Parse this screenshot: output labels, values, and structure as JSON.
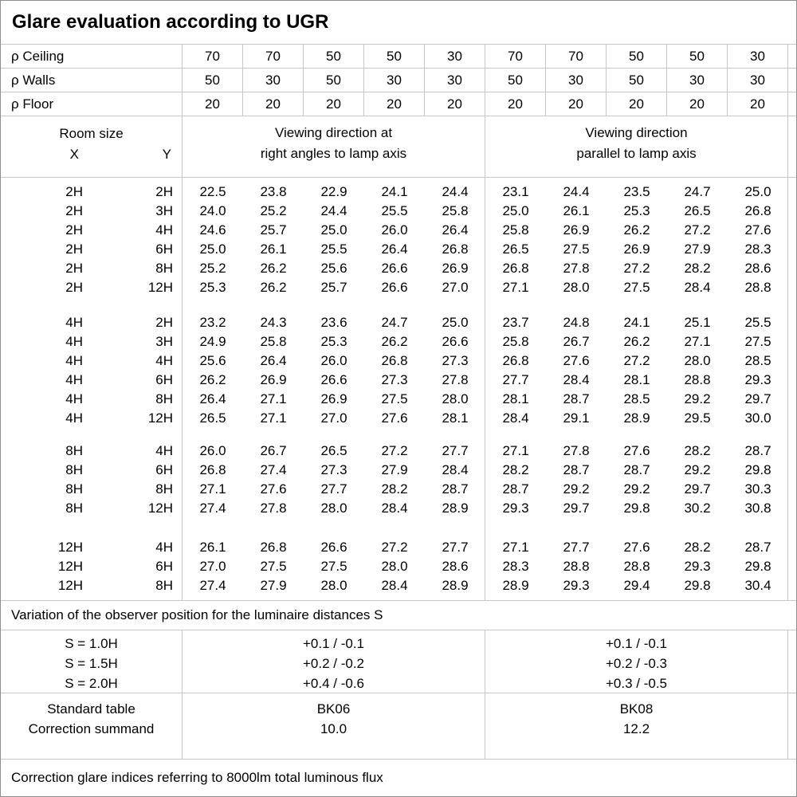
{
  "title": "Glare evaluation according to UGR",
  "grid_line_color": "#c6c6c6",
  "outer_border_color": "#8f8f8f",
  "reflectances": {
    "rows": [
      {
        "label": "ρ Ceiling",
        "values": [
          "70",
          "70",
          "50",
          "50",
          "30",
          "70",
          "70",
          "50",
          "50",
          "30"
        ]
      },
      {
        "label": "ρ Walls",
        "values": [
          "50",
          "30",
          "50",
          "30",
          "30",
          "50",
          "30",
          "50",
          "30",
          "30"
        ]
      },
      {
        "label": "ρ Floor",
        "values": [
          "20",
          "20",
          "20",
          "20",
          "20",
          "20",
          "20",
          "20",
          "20",
          "20"
        ]
      }
    ]
  },
  "header": {
    "room_size_label": "Room size",
    "x_label": "X",
    "y_label": "Y",
    "group1_title": [
      "Viewing direction at",
      "right angles to lamp axis"
    ],
    "group2_title": [
      "Viewing direction",
      "parallel to lamp axis"
    ]
  },
  "ugr_table": {
    "blocks": [
      {
        "rows": [
          {
            "x": "2H",
            "y": "2H",
            "values": [
              "22.5",
              "23.8",
              "22.9",
              "24.1",
              "24.4",
              "23.1",
              "24.4",
              "23.5",
              "24.7",
              "25.0"
            ]
          },
          {
            "x": "2H",
            "y": "3H",
            "values": [
              "24.0",
              "25.2",
              "24.4",
              "25.5",
              "25.8",
              "25.0",
              "26.1",
              "25.3",
              "26.5",
              "26.8"
            ]
          },
          {
            "x": "2H",
            "y": "4H",
            "values": [
              "24.6",
              "25.7",
              "25.0",
              "26.0",
              "26.4",
              "25.8",
              "26.9",
              "26.2",
              "27.2",
              "27.6"
            ]
          },
          {
            "x": "2H",
            "y": "6H",
            "values": [
              "25.0",
              "26.1",
              "25.5",
              "26.4",
              "26.8",
              "26.5",
              "27.5",
              "26.9",
              "27.9",
              "28.3"
            ]
          },
          {
            "x": "2H",
            "y": "8H",
            "values": [
              "25.2",
              "26.2",
              "25.6",
              "26.6",
              "26.9",
              "26.8",
              "27.8",
              "27.2",
              "28.2",
              "28.6"
            ]
          },
          {
            "x": "2H",
            "y": "12H",
            "values": [
              "25.3",
              "26.2",
              "25.7",
              "26.6",
              "27.0",
              "27.1",
              "28.0",
              "27.5",
              "28.4",
              "28.8"
            ]
          }
        ]
      },
      {
        "rows": [
          {
            "x": "4H",
            "y": "2H",
            "values": [
              "23.2",
              "24.3",
              "23.6",
              "24.7",
              "25.0",
              "23.7",
              "24.8",
              "24.1",
              "25.1",
              "25.5"
            ]
          },
          {
            "x": "4H",
            "y": "3H",
            "values": [
              "24.9",
              "25.8",
              "25.3",
              "26.2",
              "26.6",
              "25.8",
              "26.7",
              "26.2",
              "27.1",
              "27.5"
            ]
          },
          {
            "x": "4H",
            "y": "4H",
            "values": [
              "25.6",
              "26.4",
              "26.0",
              "26.8",
              "27.3",
              "26.8",
              "27.6",
              "27.2",
              "28.0",
              "28.5"
            ]
          },
          {
            "x": "4H",
            "y": "6H",
            "values": [
              "26.2",
              "26.9",
              "26.6",
              "27.3",
              "27.8",
              "27.7",
              "28.4",
              "28.1",
              "28.8",
              "29.3"
            ]
          },
          {
            "x": "4H",
            "y": "8H",
            "values": [
              "26.4",
              "27.1",
              "26.9",
              "27.5",
              "28.0",
              "28.1",
              "28.7",
              "28.5",
              "29.2",
              "29.7"
            ]
          },
          {
            "x": "4H",
            "y": "12H",
            "values": [
              "26.5",
              "27.1",
              "27.0",
              "27.6",
              "28.1",
              "28.4",
              "29.1",
              "28.9",
              "29.5",
              "30.0"
            ]
          }
        ]
      },
      {
        "rows": [
          {
            "x": "8H",
            "y": "4H",
            "values": [
              "26.0",
              "26.7",
              "26.5",
              "27.2",
              "27.7",
              "27.1",
              "27.8",
              "27.6",
              "28.2",
              "28.7"
            ]
          },
          {
            "x": "8H",
            "y": "6H",
            "values": [
              "26.8",
              "27.4",
              "27.3",
              "27.9",
              "28.4",
              "28.2",
              "28.7",
              "28.7",
              "29.2",
              "29.8"
            ]
          },
          {
            "x": "8H",
            "y": "8H",
            "values": [
              "27.1",
              "27.6",
              "27.7",
              "28.2",
              "28.7",
              "28.7",
              "29.2",
              "29.2",
              "29.7",
              "30.3"
            ]
          },
          {
            "x": "8H",
            "y": "12H",
            "values": [
              "27.4",
              "27.8",
              "28.0",
              "28.4",
              "28.9",
              "29.3",
              "29.7",
              "29.8",
              "30.2",
              "30.8"
            ]
          }
        ]
      },
      {
        "rows": [
          {
            "x": "12H",
            "y": "4H",
            "values": [
              "26.1",
              "26.8",
              "26.6",
              "27.2",
              "27.7",
              "27.1",
              "27.7",
              "27.6",
              "28.2",
              "28.7"
            ]
          },
          {
            "x": "12H",
            "y": "6H",
            "values": [
              "27.0",
              "27.5",
              "27.5",
              "28.0",
              "28.6",
              "28.3",
              "28.8",
              "28.8",
              "29.3",
              "29.8"
            ]
          },
          {
            "x": "12H",
            "y": "8H",
            "values": [
              "27.4",
              "27.9",
              "28.0",
              "28.4",
              "28.9",
              "28.9",
              "29.3",
              "29.4",
              "29.8",
              "30.4"
            ]
          }
        ]
      }
    ]
  },
  "variation_note": "Variation of the observer position for the luminaire distances S",
  "spacing_section": {
    "rows": [
      {
        "label": "S = 1.0H",
        "group1": "+0.1 / -0.1",
        "group2": "+0.1 / -0.1"
      },
      {
        "label": "S = 1.5H",
        "group1": "+0.2 / -0.2",
        "group2": "+0.2 / -0.3"
      },
      {
        "label": "S = 2.0H",
        "group1": "+0.4 / -0.6",
        "group2": "+0.3 / -0.5"
      }
    ]
  },
  "standard_section": {
    "row1_label": "Standard table",
    "row2_label": "Correction summand",
    "group1": {
      "table": "BK06",
      "summand": "10.0"
    },
    "group2": {
      "table": "BK08",
      "summand": "12.2"
    }
  },
  "footer_note": "Correction glare indices referring to 8000lm total luminous flux"
}
